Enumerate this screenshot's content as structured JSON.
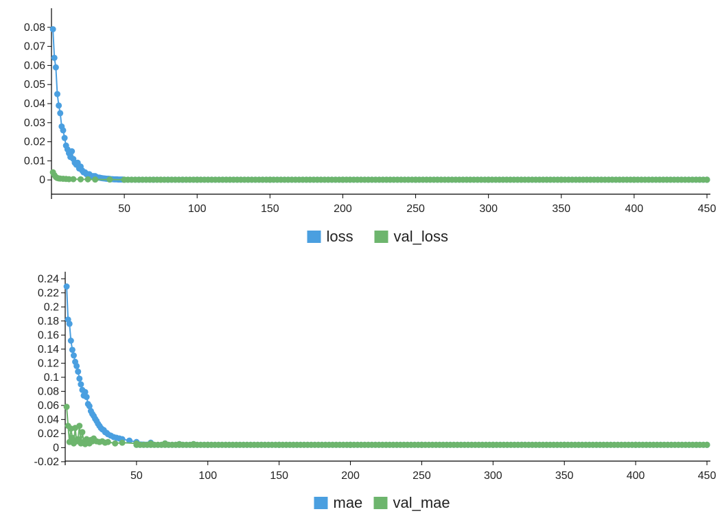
{
  "chart_data": [
    {
      "type": "line",
      "title": "",
      "xlabel": "",
      "ylabel": "",
      "xlim": [
        0,
        450
      ],
      "ylim": [
        -0.01,
        0.09
      ],
      "xticks": [
        50,
        100,
        150,
        200,
        250,
        300,
        350,
        400,
        450
      ],
      "yticks": [
        0,
        0.01,
        0.02,
        0.03,
        0.04,
        0.05,
        0.06,
        0.07,
        0.08
      ],
      "ytick_labels": [
        "0",
        "0.01",
        "0.02",
        "0.03",
        "0.04",
        "0.05",
        "0.06",
        "0.07",
        "0.08"
      ],
      "legend_position": "bottom-center",
      "series": [
        {
          "name": "loss",
          "color": "#4a9fe0",
          "x": [
            1,
            2,
            3,
            4,
            5,
            6,
            7,
            8,
            9,
            10,
            11,
            12,
            13,
            14,
            15,
            16,
            17,
            18,
            19,
            20,
            21,
            22,
            23,
            24,
            25,
            26,
            27,
            28,
            29,
            30,
            31,
            32,
            33,
            34,
            35,
            36,
            37,
            38,
            39,
            40,
            41,
            42,
            43,
            44,
            45,
            46,
            47,
            48,
            49,
            50,
            60,
            70,
            80,
            90,
            100,
            150,
            200,
            250,
            300,
            350,
            400,
            450
          ],
          "y": [
            0.079,
            0.064,
            0.059,
            0.045,
            0.039,
            0.035,
            0.028,
            0.026,
            0.022,
            0.018,
            0.016,
            0.014,
            0.012,
            0.015,
            0.011,
            0.009,
            0.008,
            0.009,
            0.006,
            0.007,
            0.005,
            0.004,
            0.004,
            0.003,
            0.003,
            0.003,
            0.002,
            0.002,
            0.002,
            0.002,
            0.0015,
            0.0012,
            0.0012,
            0.001,
            0.0009,
            0.0008,
            0.0007,
            0.0006,
            0.0006,
            0.0005,
            0.0004,
            0.0004,
            0.0003,
            0.0003,
            0.0003,
            0.0002,
            0.0002,
            0.0002,
            0.0002,
            0.0001,
            0.0001,
            0.0001,
            0.0001,
            0.0001,
            0.0001,
            0.0001,
            0.0001,
            0.0001,
            0.0001,
            0.0001,
            0.0001,
            0.0001
          ]
        },
        {
          "name": "val_loss",
          "color": "#6db56d",
          "x": [
            1,
            2,
            3,
            4,
            5,
            6,
            8,
            10,
            12,
            15,
            20,
            25,
            30,
            40,
            50,
            75,
            100,
            150,
            200,
            250,
            300,
            350,
            400,
            450
          ],
          "y": [
            0.004,
            0.0025,
            0.0015,
            0.001,
            0.0008,
            0.0007,
            0.0006,
            0.0005,
            0.0004,
            0.0004,
            0.0003,
            0.0003,
            0.0002,
            0.0002,
            0.0001,
            0.0001,
            0.0001,
            0.0001,
            0.0001,
            0.0001,
            0.0001,
            0.0001,
            0.0001,
            0.0001
          ]
        }
      ]
    },
    {
      "type": "line",
      "title": "",
      "xlabel": "",
      "ylabel": "",
      "xlim": [
        0,
        450
      ],
      "ylim": [
        -0.025,
        0.25
      ],
      "xticks": [
        50,
        100,
        150,
        200,
        250,
        300,
        350,
        400,
        450
      ],
      "yticks": [
        -0.02,
        0,
        0.02,
        0.04,
        0.06,
        0.08,
        0.1,
        0.12,
        0.14,
        0.16,
        0.18,
        0.2,
        0.22,
        0.24
      ],
      "ytick_labels": [
        "-0.02",
        "0",
        "0.02",
        "0.04",
        "0.06",
        "0.08",
        "0.1",
        "0.12",
        "0.14",
        "0.16",
        "0.18",
        "0.2",
        "0.22",
        "0.24"
      ],
      "legend_position": "bottom-center",
      "series": [
        {
          "name": "mae",
          "color": "#4a9fe0",
          "x": [
            1,
            2,
            3,
            4,
            5,
            6,
            7,
            8,
            9,
            10,
            11,
            12,
            13,
            14,
            15,
            16,
            17,
            18,
            19,
            20,
            21,
            22,
            23,
            24,
            25,
            26,
            27,
            28,
            29,
            30,
            32,
            34,
            36,
            38,
            40,
            45,
            50,
            60,
            70,
            80,
            90,
            100,
            150,
            200,
            250,
            300,
            350,
            400,
            450
          ],
          "y": [
            0.229,
            0.182,
            0.176,
            0.152,
            0.139,
            0.131,
            0.122,
            0.116,
            0.108,
            0.098,
            0.09,
            0.082,
            0.074,
            0.079,
            0.072,
            0.062,
            0.059,
            0.052,
            0.048,
            0.045,
            0.041,
            0.038,
            0.034,
            0.031,
            0.028,
            0.026,
            0.025,
            0.022,
            0.021,
            0.019,
            0.017,
            0.015,
            0.014,
            0.013,
            0.012,
            0.01,
            0.008,
            0.007,
            0.006,
            0.005,
            0.005,
            0.004,
            0.004,
            0.004,
            0.004,
            0.004,
            0.004,
            0.004,
            0.004
          ]
        },
        {
          "name": "val_mae",
          "color": "#6db56d",
          "x": [
            1,
            2,
            3,
            4,
            5,
            6,
            7,
            8,
            9,
            10,
            11,
            12,
            13,
            14,
            15,
            16,
            17,
            18,
            19,
            20,
            22,
            24,
            26,
            28,
            30,
            35,
            40,
            50,
            60,
            70,
            80,
            90,
            100,
            150,
            200,
            250,
            300,
            350,
            400,
            450
          ],
          "y": [
            0.058,
            0.031,
            0.008,
            0.027,
            0.014,
            0.006,
            0.028,
            0.009,
            0.012,
            0.031,
            0.006,
            0.022,
            0.008,
            0.005,
            0.012,
            0.007,
            0.006,
            0.011,
            0.009,
            0.013,
            0.009,
            0.008,
            0.009,
            0.007,
            0.008,
            0.006,
            0.007,
            0.006,
            0.006,
            0.006,
            0.005,
            0.005,
            0.004,
            0.004,
            0.004,
            0.004,
            0.004,
            0.004,
            0.004,
            0.004
          ]
        }
      ]
    }
  ]
}
